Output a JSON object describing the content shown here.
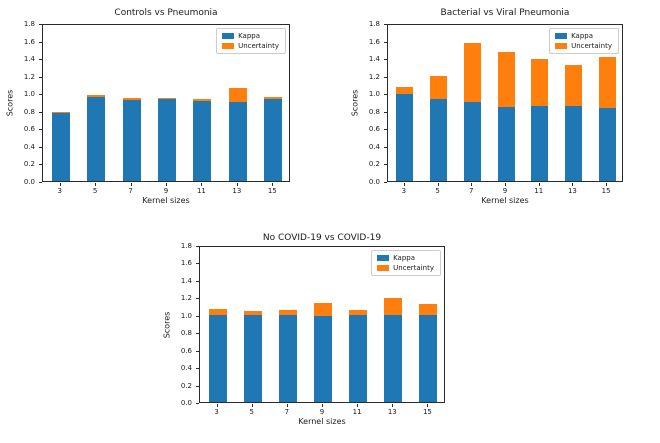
{
  "figure": {
    "background": "#ffffff"
  },
  "colors": {
    "kappa": "#1f77b4",
    "uncertainty": "#ff7f0e",
    "spine": "#2b2b2b",
    "legend_border": "#cccccc"
  },
  "chart_data": [
    {
      "type": "bar",
      "stacked": true,
      "title": "Controls vs Pneumonia",
      "xlabel": "Kernel sizes",
      "ylabel": "Scores",
      "ylim": [
        0,
        1.8
      ],
      "yticks": [
        "0.0",
        "0.2",
        "0.4",
        "0.6",
        "0.8",
        "1.0",
        "1.2",
        "1.4",
        "1.6",
        "1.8"
      ],
      "categories": [
        "3",
        "5",
        "7",
        "9",
        "11",
        "13",
        "15"
      ],
      "grid": false,
      "legend": {
        "position": "upper right",
        "entries": [
          "Kappa",
          "Uncertainty"
        ]
      },
      "series": [
        {
          "name": "Kappa",
          "color": "#1f77b4",
          "values": [
            0.77,
            0.96,
            0.92,
            0.93,
            0.91,
            0.9,
            0.94
          ]
        },
        {
          "name": "Uncertainty",
          "color": "#ff7f0e",
          "values": [
            0.02,
            0.02,
            0.03,
            0.02,
            0.03,
            0.16,
            0.02
          ]
        }
      ]
    },
    {
      "type": "bar",
      "stacked": true,
      "title": "Bacterial vs Viral Pneumonia",
      "xlabel": "Kernel sizes",
      "ylabel": "Scores",
      "ylim": [
        0,
        1.8
      ],
      "yticks": [
        "0.0",
        "0.2",
        "0.4",
        "0.6",
        "0.8",
        "1.0",
        "1.2",
        "1.4",
        "1.6",
        "1.8"
      ],
      "categories": [
        "3",
        "5",
        "7",
        "9",
        "11",
        "13",
        "15"
      ],
      "grid": false,
      "legend": {
        "position": "upper right",
        "entries": [
          "Kappa",
          "Uncertainty"
        ]
      },
      "series": [
        {
          "name": "Kappa",
          "color": "#1f77b4",
          "values": [
            0.99,
            0.93,
            0.9,
            0.84,
            0.85,
            0.85,
            0.83
          ]
        },
        {
          "name": "Uncertainty",
          "color": "#ff7f0e",
          "values": [
            0.08,
            0.27,
            0.67,
            0.63,
            0.54,
            0.47,
            0.58
          ]
        }
      ]
    },
    {
      "type": "bar",
      "stacked": true,
      "title": "No COVID-19 vs COVID-19",
      "xlabel": "Kernel sizes",
      "ylabel": "Scores",
      "ylim": [
        0,
        1.8
      ],
      "yticks": [
        "0.0",
        "0.2",
        "0.4",
        "0.6",
        "0.8",
        "1.0",
        "1.2",
        "1.4",
        "1.6",
        "1.8"
      ],
      "categories": [
        "3",
        "5",
        "7",
        "9",
        "11",
        "13",
        "15"
      ],
      "grid": false,
      "legend": {
        "position": "upper right",
        "entries": [
          "Kappa",
          "Uncertainty"
        ]
      },
      "series": [
        {
          "name": "Kappa",
          "color": "#1f77b4",
          "values": [
            1.0,
            1.0,
            1.0,
            0.99,
            1.0,
            1.0,
            1.0
          ]
        },
        {
          "name": "Uncertainty",
          "color": "#ff7f0e",
          "values": [
            0.07,
            0.04,
            0.06,
            0.15,
            0.06,
            0.19,
            0.12
          ]
        }
      ]
    }
  ]
}
